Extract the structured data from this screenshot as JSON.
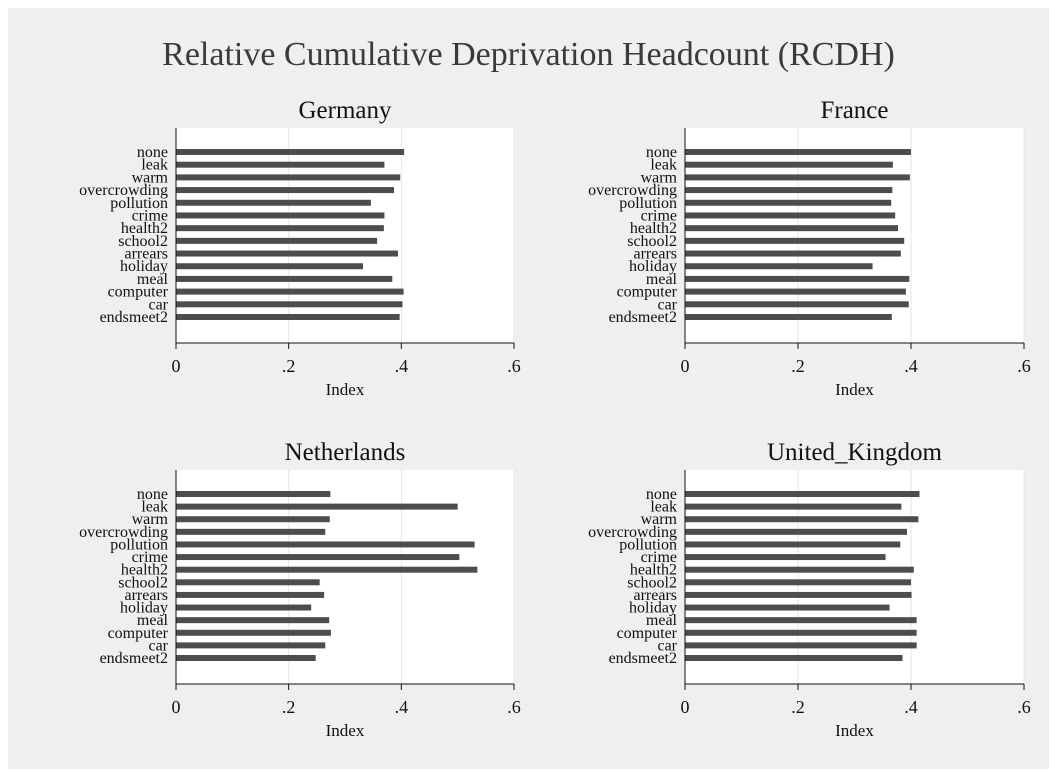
{
  "figure": {
    "title": "Relative Cumulative Deprivation Headcount (RCDH)",
    "background": "#efefef",
    "plot_background": "#ffffff",
    "bar_color": "#4d4d4d",
    "grid_color": "#e6e6e6"
  },
  "chart_data": [
    {
      "type": "bar",
      "orientation": "horizontal",
      "title": "Germany",
      "xlabel": "Index",
      "xlim": [
        0,
        0.6
      ],
      "xticks": [
        0,
        0.2,
        0.4,
        0.6
      ],
      "xtick_labels": [
        "0",
        ".2",
        ".4",
        ".6"
      ],
      "categories": [
        "none",
        "leak",
        "warm",
        "overcrowding",
        "pollution",
        "crime",
        "health2",
        "school2",
        "arrears",
        "holiday",
        "meal",
        "computer",
        "car",
        "endsmeet2"
      ],
      "values": [
        0.405,
        0.37,
        0.398,
        0.387,
        0.346,
        0.37,
        0.369,
        0.357,
        0.394,
        0.332,
        0.384,
        0.404,
        0.402,
        0.397
      ],
      "grid": true
    },
    {
      "type": "bar",
      "orientation": "horizontal",
      "title": "France",
      "xlabel": "Index",
      "xlim": [
        0,
        0.6
      ],
      "xticks": [
        0,
        0.2,
        0.4,
        0.6
      ],
      "xtick_labels": [
        "0",
        ".2",
        ".4",
        ".6"
      ],
      "categories": [
        "none",
        "leak",
        "warm",
        "overcrowding",
        "pollution",
        "crime",
        "health2",
        "school2",
        "arrears",
        "holiday",
        "meal",
        "computer",
        "car",
        "endsmeet2"
      ],
      "values": [
        0.4,
        0.368,
        0.398,
        0.367,
        0.365,
        0.372,
        0.377,
        0.388,
        0.382,
        0.332,
        0.397,
        0.391,
        0.396,
        0.366
      ],
      "grid": true
    },
    {
      "type": "bar",
      "orientation": "horizontal",
      "title": "Netherlands",
      "xlabel": "Index",
      "xlim": [
        0,
        0.6
      ],
      "xticks": [
        0,
        0.2,
        0.4,
        0.6
      ],
      "xtick_labels": [
        "0",
        ".2",
        ".4",
        ".6"
      ],
      "categories": [
        "none",
        "leak",
        "warm",
        "overcrowding",
        "pollution",
        "crime",
        "health2",
        "school2",
        "arrears",
        "holiday",
        "meal",
        "computer",
        "car",
        "endsmeet2"
      ],
      "values": [
        0.274,
        0.5,
        0.273,
        0.265,
        0.53,
        0.503,
        0.535,
        0.255,
        0.263,
        0.24,
        0.272,
        0.275,
        0.265,
        0.248
      ],
      "grid": true
    },
    {
      "type": "bar",
      "orientation": "horizontal",
      "title": "United_Kingdom",
      "xlabel": "Index",
      "xlim": [
        0,
        0.6
      ],
      "xticks": [
        0,
        0.2,
        0.4,
        0.6
      ],
      "xtick_labels": [
        "0",
        ".2",
        ".4",
        ".6"
      ],
      "categories": [
        "none",
        "leak",
        "warm",
        "overcrowding",
        "pollution",
        "crime",
        "health2",
        "school2",
        "arrears",
        "holiday",
        "meal",
        "computer",
        "car",
        "endsmeet2"
      ],
      "values": [
        0.415,
        0.383,
        0.413,
        0.393,
        0.381,
        0.355,
        0.405,
        0.4,
        0.401,
        0.362,
        0.41,
        0.41,
        0.41,
        0.385
      ],
      "grid": true
    }
  ]
}
